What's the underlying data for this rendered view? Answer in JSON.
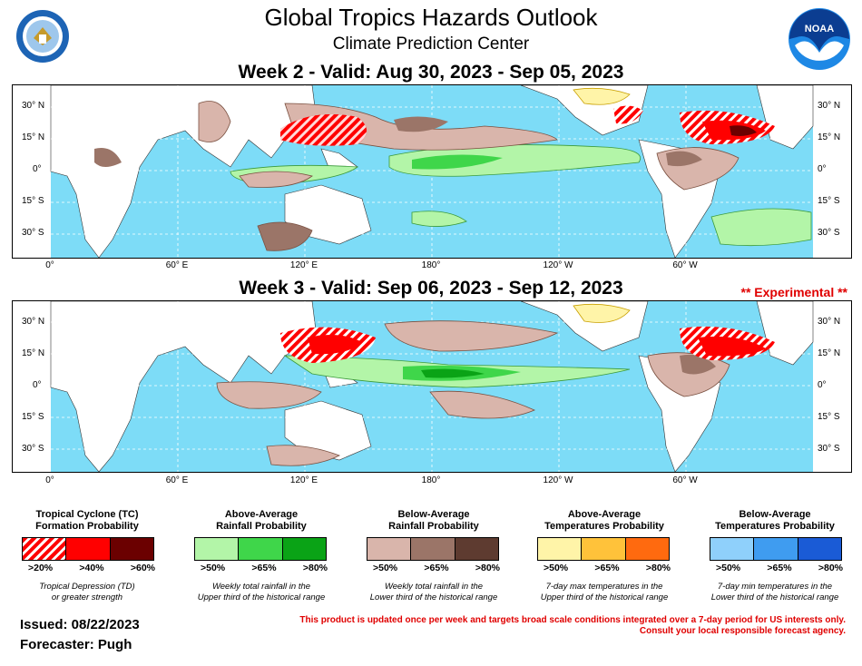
{
  "header": {
    "title": "Global Tropics Hazards Outlook",
    "subtitle": "Climate Prediction Center",
    "left_logo": "dept-of-commerce-seal",
    "right_logo": "noaa-logo",
    "noaa_text": "NOAA"
  },
  "week2": {
    "title": "Week 2 - Valid: Aug 30, 2023 - Sep 05, 2023"
  },
  "week3": {
    "title": "Week 3 - Valid: Sep 06, 2023 - Sep 12, 2023",
    "experimental": "** Experimental **"
  },
  "axes": {
    "lat_left": [
      "30° N",
      "15° N",
      "0°",
      "15° S",
      "30° S"
    ],
    "lat_right": [
      "30° N",
      "15° N",
      "0°",
      "15° S",
      "30° S"
    ],
    "lon": [
      "0°",
      "60° E",
      "120° E",
      "180°",
      "120° W",
      "60° W"
    ]
  },
  "legend": {
    "tc": {
      "title1": "Tropical Cyclone (TC)",
      "title2": "Formation Probability",
      "labels": [
        ">20%",
        ">40%",
        ">60%"
      ],
      "colors": [
        "#ff0000",
        "#ff0000",
        "#6b0000"
      ],
      "note1": "Tropical Depression (TD)",
      "note2": "or greater strength"
    },
    "rain_above": {
      "title1": "Above-Average",
      "title2": "Rainfall Probability",
      "labels": [
        ">50%",
        ">65%",
        ">80%"
      ],
      "colors": [
        "#b3f5a8",
        "#3fd64a",
        "#0aa316"
      ],
      "note1": "Weekly total rainfall in the",
      "note2": "Upper third of the historical range"
    },
    "rain_below": {
      "title1": "Below-Average",
      "title2": "Rainfall Probability",
      "labels": [
        ">50%",
        ">65%",
        ">80%"
      ],
      "colors": [
        "#d9b5ab",
        "#9b7568",
        "#5e3b30"
      ],
      "note1": "Weekly total rainfall in the",
      "note2": "Lower third of the historical range"
    },
    "temp_above": {
      "title1": "Above-Average",
      "title2": "Temperatures Probability",
      "labels": [
        ">50%",
        ">65%",
        ">80%"
      ],
      "colors": [
        "#fff4a8",
        "#ffc23a",
        "#ff6a0f"
      ],
      "note1": "7-day max temperatures in the",
      "note2": "Upper third of the historical range"
    },
    "temp_below": {
      "title1": "Below-Average",
      "title2": "Temperatures Probability",
      "labels": [
        ">50%",
        ">65%",
        ">80%"
      ],
      "colors": [
        "#8fd0fb",
        "#3f9cf0",
        "#1a5bd6"
      ],
      "note1": "7-day min temperatures in the",
      "note2": "Lower third of the historical range"
    }
  },
  "footer": {
    "issued": "Issued: 08/22/2023",
    "forecaster": "Forecaster: Pugh",
    "disclaimer1": "This product is updated once per week and targets broad scale conditions integrated over a 7-day period for US interests only.",
    "disclaimer2": "Consult your local responsible forecast agency."
  },
  "colors": {
    "ocean": "#7ddcf7",
    "land": "#ffffff"
  }
}
